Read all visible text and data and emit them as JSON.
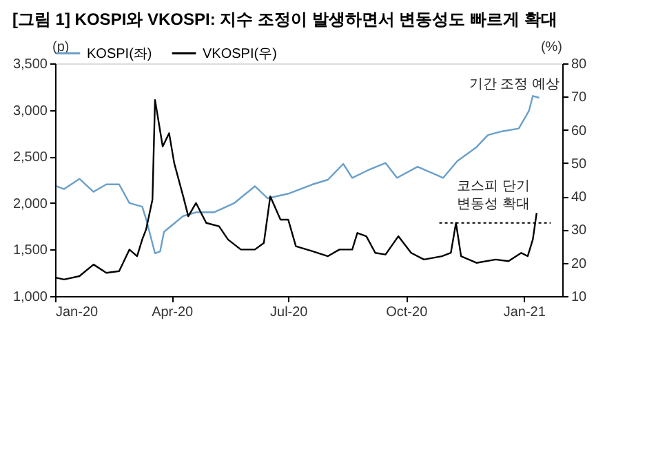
{
  "chart_data": {
    "type": "line",
    "title": "[그림 1] KOSPI와 VKOSPI: 지수 조정이 발생하면서 변동성도 빠르게 확대",
    "ylabel": "(p)",
    "y2label": "(%)",
    "x": [
      "2020-01-02",
      "2020-01-08",
      "2020-01-20",
      "2020-01-31",
      "2020-02-10",
      "2020-02-20",
      "2020-02-28",
      "2020-03-09",
      "2020-03-12",
      "2020-03-19",
      "2020-03-23",
      "2020-03-26",
      "2020-04-10",
      "2020-04-20",
      "2020-05-04",
      "2020-05-20",
      "2020-06-05",
      "2020-06-15",
      "2020-07-01",
      "2020-07-20",
      "2020-08-01",
      "2020-08-13",
      "2020-08-20",
      "2020-09-01",
      "2020-09-15",
      "2020-09-24",
      "2020-10-10",
      "2020-10-30",
      "2020-11-10",
      "2020-11-25",
      "2020-12-04",
      "2020-12-15",
      "2020-12-28",
      "2021-01-05",
      "2021-01-08",
      "2021-01-13"
    ],
    "series": [
      {
        "name": "KOSPI(좌)",
        "color": "#6a9fc9",
        "values": [
          2180,
          2150,
          2260,
          2120,
          2200,
          2200,
          2000,
          1960,
          1830,
          1460,
          1480,
          1690,
          1860,
          1900,
          1900,
          2000,
          2180,
          2050,
          2100,
          2200,
          2250,
          2420,
          2270,
          2350,
          2430,
          2270,
          2390,
          2270,
          2450,
          2600,
          2730,
          2770,
          2800,
          2990,
          3150,
          3130
        ]
      },
      {
        "name": "VKOSPI(우)",
        "color": "#000000",
        "axis": "y2",
        "x": [
          "2020-01-02",
          "2020-01-08",
          "2020-01-20",
          "2020-01-31",
          "2020-02-10",
          "2020-02-20",
          "2020-02-28",
          "2020-03-05",
          "2020-03-09",
          "2020-03-12",
          "2020-03-17",
          "2020-03-19",
          "2020-03-25",
          "2020-03-30",
          "2020-04-03",
          "2020-04-10",
          "2020-04-14",
          "2020-04-20",
          "2020-04-28",
          "2020-05-08",
          "2020-05-15",
          "2020-05-25",
          "2020-06-05",
          "2020-06-12",
          "2020-06-17",
          "2020-06-25",
          "2020-07-01",
          "2020-07-07",
          "2020-07-20",
          "2020-08-01",
          "2020-08-10",
          "2020-08-20",
          "2020-08-24",
          "2020-08-31",
          "2020-09-07",
          "2020-09-15",
          "2020-09-25",
          "2020-10-05",
          "2020-10-15",
          "2020-10-29",
          "2020-11-05",
          "2020-11-09",
          "2020-11-13",
          "2020-11-25",
          "2020-12-10",
          "2020-12-20",
          "2020-12-30",
          "2021-01-04",
          "2021-01-08",
          "2021-01-11"
        ],
        "values": [
          15.5,
          15,
          16,
          19.5,
          17,
          17.5,
          24,
          22,
          27,
          30,
          39,
          69,
          55,
          59,
          50,
          40,
          34,
          38,
          32,
          31,
          27,
          24,
          24,
          26,
          40,
          33,
          33,
          25,
          23.5,
          22,
          24,
          24,
          29,
          28,
          23,
          22.5,
          28,
          23,
          21,
          22,
          23,
          32,
          22,
          20,
          21,
          20.5,
          23,
          22,
          27,
          35
        ]
      },
      {
        "type": "line",
        "color": "#000000",
        "axis": "y2",
        "line_style": "dotted",
        "x": [
          "2020-10-27",
          "2021-01-22"
        ],
        "values": [
          32,
          32
        ]
      }
    ],
    "xlim": [
      "2020-01-01",
      "2021-01-31"
    ],
    "xticks": [
      {
        "value": "2020-01-01",
        "label": "Jan-20"
      },
      {
        "value": "2020-04-01",
        "label": "Apr-20"
      },
      {
        "value": "2020-07-01",
        "label": "Jul-20"
      },
      {
        "value": "2020-10-01",
        "label": "Oct-20"
      },
      {
        "value": "2021-01-01",
        "label": "Jan-21"
      }
    ],
    "ylim": [
      1000,
      3500
    ],
    "yticks": [
      {
        "value": 1000,
        "label": "1,000"
      },
      {
        "value": 1500,
        "label": "1,500"
      },
      {
        "value": 2000,
        "label": "2,000"
      },
      {
        "value": 2500,
        "label": "2,500"
      },
      {
        "value": 3000,
        "label": "3,000"
      },
      {
        "value": 3500,
        "label": "3,500"
      }
    ],
    "y2lim": [
      10,
      80
    ],
    "y2ticks": [
      10,
      20,
      30,
      40,
      50,
      60,
      70,
      80
    ],
    "annotations": [
      "기간 조정 예상",
      "코스피 단기\n변동성 확대"
    ],
    "grid": false,
    "legend": "top",
    "line_style": "solid",
    "marker": "none"
  }
}
